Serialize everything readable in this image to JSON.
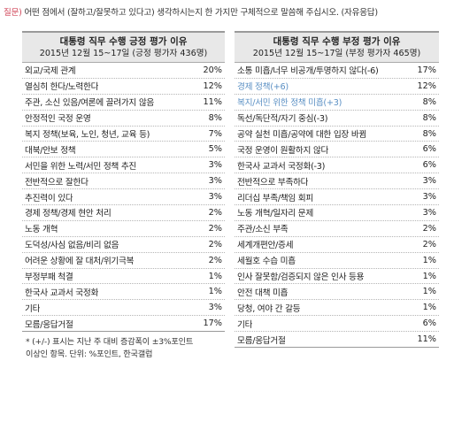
{
  "question": {
    "label": "질문)",
    "text": "어떤 점에서 (잘하고/잘못하고 있다고) 생각하시는지 한 가지만 구체적으로 말씀해 주십시오. (자유응답)"
  },
  "positive": {
    "title": "대통령 직무 수행 긍정 평가 이유",
    "subtitle": "2015년 12월 15~17일 (긍정 평가자 436명)",
    "rows": [
      {
        "label": "외교/국제 관계",
        "value": "20%"
      },
      {
        "label": "열심히 한다/노력한다",
        "value": "12%"
      },
      {
        "label": "주관, 소신 있음/여론에 끌려가지 않음",
        "value": "11%"
      },
      {
        "label": "안정적인 국정 운영",
        "value": "8%"
      },
      {
        "label": "복지 정책(보육, 노인, 청년, 교육 등)",
        "value": "7%"
      },
      {
        "label": "대북/안보 정책",
        "value": "5%"
      },
      {
        "label": "서민을 위한 노력/서민 정책 추진",
        "value": "3%"
      },
      {
        "label": "전반적으로 잘한다",
        "value": "3%"
      },
      {
        "label": "추진력이 있다",
        "value": "3%"
      },
      {
        "label": "경제 정책/경제 현안 처리",
        "value": "2%"
      },
      {
        "label": "노동 개혁",
        "value": "2%"
      },
      {
        "label": "도덕성/사심 없음/비리 없음",
        "value": "2%"
      },
      {
        "label": "어려운 상황에 잘 대처/위기극복",
        "value": "2%"
      },
      {
        "label": "부정부패 척결",
        "value": "1%"
      },
      {
        "label": "한국사 교과서 국정화",
        "value": "1%"
      },
      {
        "label": "기타",
        "value": "3%"
      },
      {
        "label": "모름/응답거절",
        "value": "17%"
      }
    ],
    "notes": [
      "* (+/-) 표시는 지난 주 대비 증감폭이 ±3%포인트",
      "  이상인 항목. 단위: %포인트, 한국갤럽"
    ]
  },
  "negative": {
    "title": "대통령 직무 수행 부정 평가 이유",
    "subtitle": "2015년 12월 15~17일 (부정 평가자 465명)",
    "rows": [
      {
        "label": "소통 미흡/너무 비공개/투명하지 않다(-6)",
        "value": "17%",
        "accent": false
      },
      {
        "label": "경제 정책(+6)",
        "value": "12%",
        "accent": true
      },
      {
        "label": "복지/서민 위한 정책 미흡(+3)",
        "value": "8%",
        "accent": true
      },
      {
        "label": "독선/독단적/자기 중심(-3)",
        "value": "8%",
        "accent": false
      },
      {
        "label": "공약 실천 미흡/공약에 대한 입장 바뀜",
        "value": "8%",
        "accent": false
      },
      {
        "label": "국정 운영이 원활하지 않다",
        "value": "6%",
        "accent": false
      },
      {
        "label": "한국사 교과서 국정화(-3)",
        "value": "6%",
        "accent": false
      },
      {
        "label": "전반적으로 부족하다",
        "value": "3%",
        "accent": false
      },
      {
        "label": "리더십 부족/책임 회피",
        "value": "3%",
        "accent": false
      },
      {
        "label": "노동 개혁/일자리 문제",
        "value": "3%",
        "accent": false
      },
      {
        "label": "주관/소신 부족",
        "value": "2%",
        "accent": false
      },
      {
        "label": "세계개편안/증세",
        "value": "2%",
        "accent": false
      },
      {
        "label": "세월호 수습 미흡",
        "value": "1%",
        "accent": false
      },
      {
        "label": "인사 잘못함/검증되지 않은 인사 등용",
        "value": "1%",
        "accent": false
      },
      {
        "label": "안전 대책 미흡",
        "value": "1%",
        "accent": false
      },
      {
        "label": "당청, 여야 간 갈등",
        "value": "1%",
        "accent": false
      },
      {
        "label": "기타",
        "value": "6%",
        "accent": false
      },
      {
        "label": "모름/응답거절",
        "value": "11%",
        "accent": false
      }
    ]
  },
  "colors": {
    "accent": "#5b90c4",
    "question_label": "#d0475a",
    "header_bg": "#e8e8e8"
  }
}
